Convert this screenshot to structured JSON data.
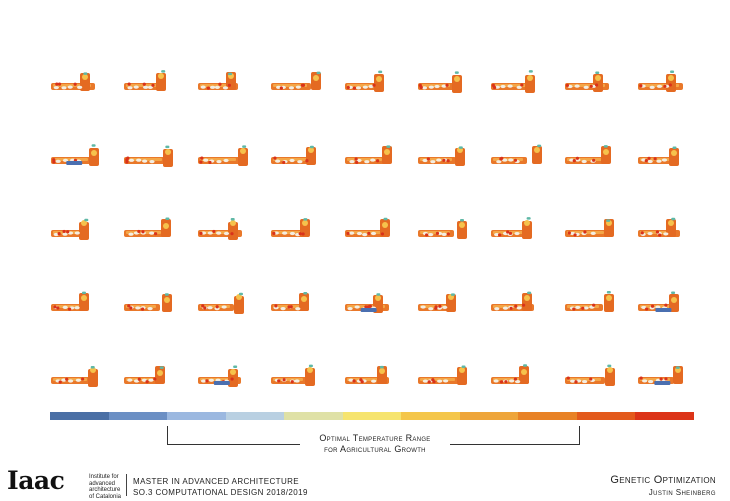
{
  "bracket_label": {
    "line1": "Optimal Temperature Range",
    "line2": "for Agricultural Growth"
  },
  "legend": {
    "colors": [
      "#4a6fa5",
      "#6b8fc4",
      "#9bb8e0",
      "#b9d0e2",
      "#dfe1a6",
      "#f6e46e",
      "#f4c64a",
      "#eea53a",
      "#e88226",
      "#e35a1c",
      "#dc3418"
    ]
  },
  "grid": {
    "rows": 5,
    "cols": 9,
    "blue_patch_cells": [
      9,
      31,
      35,
      38,
      44
    ]
  },
  "footer": {
    "logo": "Iaac",
    "institute": [
      "Institute for",
      "advanced",
      "architecture",
      "of Catalonia"
    ],
    "program_line1": "MASTER IN ADVANCED ARCHITECTURE",
    "program_line2": "SO.3 COMPUTATIONAL DESIGN 2018/2019",
    "title": "Genetic Optimization",
    "author": "Justin Sheinberg"
  }
}
